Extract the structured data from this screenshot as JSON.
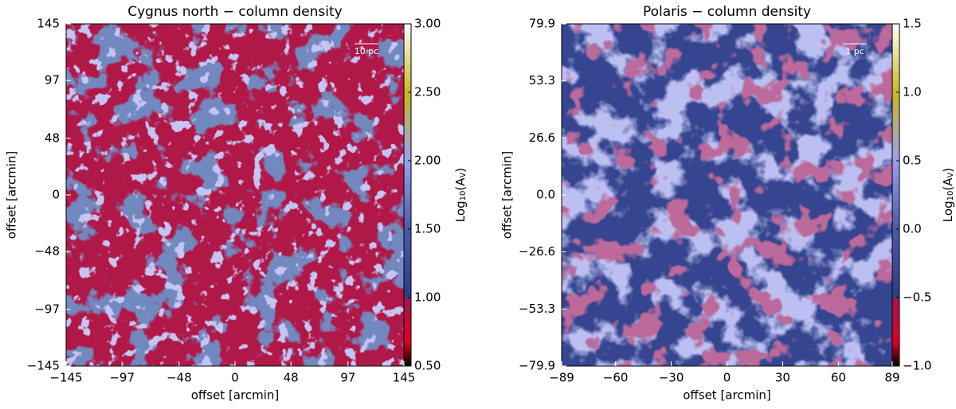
{
  "chart_data": [
    {
      "type": "heatmap",
      "title": "Cygnus north − column density",
      "xlabel": "offset [arcmin]",
      "ylabel": "offset [arcmin]",
      "colorbar_label": [
        "Log",
        "10",
        "(A",
        "V",
        ")"
      ],
      "scale_bar": "10 pc",
      "xlim": [
        -145,
        145
      ],
      "ylim": [
        -145,
        145
      ],
      "xticks": [
        {
          "value": -145,
          "label": "−145"
        },
        {
          "value": -97,
          "label": "−97"
        },
        {
          "value": -48,
          "label": "−48"
        },
        0,
        48,
        97,
        145
      ],
      "yticks": [
        {
          "value": -145,
          "label": "−145"
        },
        {
          "value": -97,
          "label": "−97"
        },
        {
          "value": -48,
          "label": "−48"
        },
        0,
        48,
        97,
        145
      ],
      "clim": [
        0.5,
        3.0
      ],
      "cticks": [
        {
          "value": 0.5,
          "label": "0.50"
        },
        {
          "value": 1.0,
          "label": "1.00"
        },
        {
          "value": 1.5,
          "label": "1.50"
        },
        {
          "value": 2.0,
          "label": "2.00"
        },
        {
          "value": 2.5,
          "label": "2.50"
        },
        {
          "value": 3.0,
          "label": "3.00"
        }
      ]
    },
    {
      "type": "heatmap",
      "title": "Polaris  − column density",
      "xlabel": "offset [arcmin]",
      "ylabel": "offset [arcmin]",
      "colorbar_label": [
        "Log",
        "10",
        "(A",
        "V",
        ")"
      ],
      "scale_bar": "1 pc",
      "xlim": [
        -89,
        89
      ],
      "ylim": [
        -79.9,
        79.9
      ],
      "xticks": [
        {
          "value": -89,
          "label": "−89"
        },
        {
          "value": -60,
          "label": "−60"
        },
        {
          "value": -30,
          "label": "−30"
        },
        0,
        30,
        60,
        89
      ],
      "yticks": [
        {
          "value": -79.9,
          "label": "−79.9"
        },
        {
          "value": -53.3,
          "label": "−53.3"
        },
        {
          "value": -26.6,
          "label": "−26.6"
        },
        {
          "value": 0,
          "label": "0.0"
        },
        26.6,
        53.3,
        79.9
      ],
      "clim": [
        -1.0,
        1.5
      ],
      "cticks": [
        {
          "value": -1.0,
          "label": "−1.0"
        },
        {
          "value": -0.5,
          "label": "−0.5"
        },
        {
          "value": 0,
          "label": "0.0"
        },
        0.5,
        {
          "value": 1.0,
          "label": "1.0"
        },
        1.5
      ]
    }
  ]
}
